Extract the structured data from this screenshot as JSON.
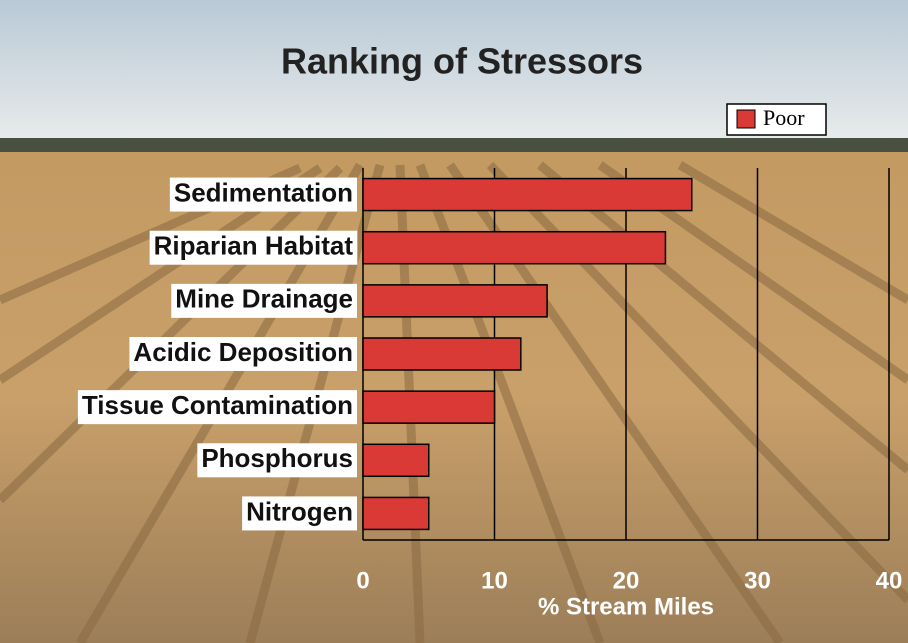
{
  "chart_data": {
    "type": "bar",
    "orientation": "horizontal",
    "title": "Ranking of Stressors",
    "x_label": "% Stream Miles",
    "categories": [
      "Sedimentation",
      "Riparian Habitat",
      "Mine Drainage",
      "Acidic Deposition",
      "Tissue Contamination",
      "Phosphorus",
      "Nitrogen"
    ],
    "series": [
      {
        "name": "Poor",
        "color": "#d93a35",
        "values": [
          25,
          23,
          14,
          12,
          10,
          5,
          5
        ]
      }
    ],
    "xlim": [
      0,
      40
    ],
    "xticks": [
      0,
      10,
      20,
      30,
      40
    ],
    "grid": true,
    "legend": "top-right"
  }
}
